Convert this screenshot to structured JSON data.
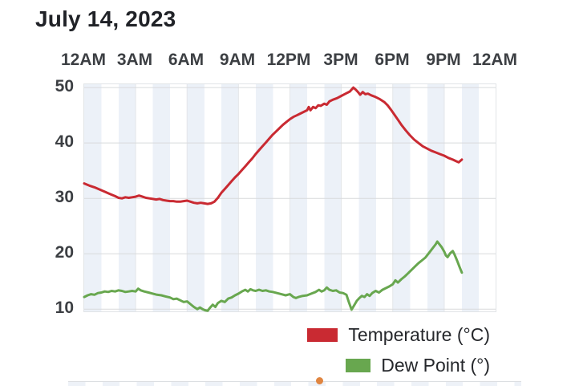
{
  "title": "July 14, 2023",
  "x_axis": {
    "labels": [
      "12AM",
      "3AM",
      "6AM",
      "9AM",
      "12PM",
      "3PM",
      "6PM",
      "9PM",
      "12AM"
    ]
  },
  "y_axis": {
    "labels": [
      "50",
      "40",
      "30",
      "20",
      "10"
    ]
  },
  "legend": [
    {
      "label": "Temperature (°C)",
      "color": "#c92a32"
    },
    {
      "label": "Dew Point (°)",
      "color": "#68a74f"
    }
  ],
  "colors": {
    "temperature_line": "#c92a32",
    "dew_point_line": "#68a74f",
    "hour_stripe": "#ecf1f8",
    "h_gridline": "#d8dadc",
    "v_gridline": "#e4e6e9",
    "next_chart_dot": "#e08540"
  },
  "next_chart_partial": {
    "dot_color": "#e08540"
  },
  "chart_data": {
    "type": "line",
    "title": "July 14, 2023",
    "x_unit": "hour_of_day",
    "x_tick_labels": [
      "12AM",
      "3AM",
      "6AM",
      "9AM",
      "12PM",
      "3PM",
      "6PM",
      "9PM",
      "12AM"
    ],
    "y_ticks": [
      10,
      20,
      30,
      40,
      50
    ],
    "x_range": [
      0,
      24
    ],
    "y_range": [
      9.6,
      50.6
    ],
    "x_gridlines": [
      3,
      6,
      9,
      12,
      15,
      18,
      21
    ],
    "y_gridlines": [
      50,
      40,
      30,
      20,
      10
    ],
    "grid": true,
    "background": "alternating 1-hour pale blue stripes",
    "legend_position": "bottom-right",
    "series": [
      {
        "name": "Temperature (°C)",
        "color": "#c92a32",
        "points": [
          [
            0,
            32.7
          ],
          [
            0.3,
            32.3
          ],
          [
            0.6,
            32.0
          ],
          [
            0.9,
            31.6
          ],
          [
            1.2,
            31.2
          ],
          [
            1.5,
            30.8
          ],
          [
            1.8,
            30.4
          ],
          [
            2,
            30.1
          ],
          [
            2.2,
            30.0
          ],
          [
            2.4,
            30.2
          ],
          [
            2.6,
            30.1
          ],
          [
            2.8,
            30.2
          ],
          [
            3,
            30.3
          ],
          [
            3.2,
            30.5
          ],
          [
            3.4,
            30.3
          ],
          [
            3.6,
            30.1
          ],
          [
            3.8,
            30.0
          ],
          [
            4,
            29.9
          ],
          [
            4.2,
            29.8
          ],
          [
            4.4,
            29.9
          ],
          [
            4.6,
            29.7
          ],
          [
            4.8,
            29.6
          ],
          [
            5,
            29.5
          ],
          [
            5.2,
            29.5
          ],
          [
            5.4,
            29.4
          ],
          [
            5.6,
            29.4
          ],
          [
            5.8,
            29.5
          ],
          [
            6,
            29.6
          ],
          [
            6.2,
            29.4
          ],
          [
            6.4,
            29.2
          ],
          [
            6.6,
            29.1
          ],
          [
            6.8,
            29.2
          ],
          [
            7,
            29.1
          ],
          [
            7.2,
            29.0
          ],
          [
            7.4,
            29.1
          ],
          [
            7.6,
            29.4
          ],
          [
            7.8,
            30.1
          ],
          [
            8,
            31.0
          ],
          [
            8.2,
            31.7
          ],
          [
            8.4,
            32.4
          ],
          [
            8.6,
            33.1
          ],
          [
            8.8,
            33.8
          ],
          [
            9,
            34.4
          ],
          [
            9.2,
            35.1
          ],
          [
            9.4,
            35.8
          ],
          [
            9.6,
            36.5
          ],
          [
            9.8,
            37.2
          ],
          [
            10,
            38.0
          ],
          [
            10.2,
            38.7
          ],
          [
            10.4,
            39.4
          ],
          [
            10.6,
            40.1
          ],
          [
            10.8,
            40.8
          ],
          [
            11,
            41.5
          ],
          [
            11.2,
            42.1
          ],
          [
            11.4,
            42.7
          ],
          [
            11.6,
            43.3
          ],
          [
            11.8,
            43.8
          ],
          [
            12,
            44.3
          ],
          [
            12.2,
            44.7
          ],
          [
            12.4,
            45.0
          ],
          [
            12.6,
            45.3
          ],
          [
            12.8,
            45.6
          ],
          [
            13,
            45.9
          ],
          [
            13.1,
            46.5
          ],
          [
            13.2,
            45.9
          ],
          [
            13.35,
            46.5
          ],
          [
            13.5,
            46.3
          ],
          [
            13.65,
            46.8
          ],
          [
            13.8,
            46.7
          ],
          [
            14,
            47.1
          ],
          [
            14.15,
            46.9
          ],
          [
            14.3,
            47.5
          ],
          [
            14.5,
            47.8
          ],
          [
            14.75,
            48.1
          ],
          [
            15,
            48.5
          ],
          [
            15.25,
            48.9
          ],
          [
            15.5,
            49.3
          ],
          [
            15.7,
            50.0
          ],
          [
            15.85,
            49.6
          ],
          [
            16,
            49.1
          ],
          [
            16.1,
            48.7
          ],
          [
            16.25,
            49.2
          ],
          [
            16.4,
            48.8
          ],
          [
            16.55,
            48.9
          ],
          [
            16.75,
            48.6
          ],
          [
            17,
            48.3
          ],
          [
            17.25,
            47.9
          ],
          [
            17.5,
            47.4
          ],
          [
            17.7,
            46.8
          ],
          [
            17.9,
            46.0
          ],
          [
            18.1,
            45.1
          ],
          [
            18.3,
            44.2
          ],
          [
            18.5,
            43.3
          ],
          [
            18.75,
            42.3
          ],
          [
            19,
            41.4
          ],
          [
            19.25,
            40.6
          ],
          [
            19.5,
            40.0
          ],
          [
            19.75,
            39.4
          ],
          [
            20,
            39.0
          ],
          [
            20.25,
            38.6
          ],
          [
            20.5,
            38.3
          ],
          [
            20.75,
            38.0
          ],
          [
            21,
            37.7
          ],
          [
            21.25,
            37.3
          ],
          [
            21.5,
            37.0
          ],
          [
            21.7,
            36.7
          ],
          [
            21.85,
            36.5
          ],
          [
            22.03,
            37.0
          ]
        ]
      },
      {
        "name": "Dew Point (°)",
        "color": "#68a74f",
        "points": [
          [
            0,
            12.2
          ],
          [
            0.2,
            12.5
          ],
          [
            0.4,
            12.7
          ],
          [
            0.6,
            12.6
          ],
          [
            0.8,
            12.9
          ],
          [
            1,
            13.0
          ],
          [
            1.2,
            13.2
          ],
          [
            1.4,
            13.1
          ],
          [
            1.6,
            13.3
          ],
          [
            1.8,
            13.2
          ],
          [
            2,
            13.4
          ],
          [
            2.2,
            13.3
          ],
          [
            2.4,
            13.1
          ],
          [
            2.6,
            13.2
          ],
          [
            2.8,
            13.3
          ],
          [
            3,
            13.2
          ],
          [
            3.15,
            13.7
          ],
          [
            3.3,
            13.4
          ],
          [
            3.5,
            13.2
          ],
          [
            3.75,
            13.0
          ],
          [
            4,
            12.8
          ],
          [
            4.25,
            12.6
          ],
          [
            4.5,
            12.5
          ],
          [
            4.75,
            12.3
          ],
          [
            5,
            12.1
          ],
          [
            5.2,
            11.8
          ],
          [
            5.4,
            11.9
          ],
          [
            5.6,
            11.6
          ],
          [
            5.8,
            11.3
          ],
          [
            6,
            11.4
          ],
          [
            6.2,
            10.9
          ],
          [
            6.4,
            10.4
          ],
          [
            6.6,
            10.0
          ],
          [
            6.75,
            10.3
          ],
          [
            6.9,
            10.0
          ],
          [
            7.05,
            9.8
          ],
          [
            7.2,
            9.7
          ],
          [
            7.35,
            10.3
          ],
          [
            7.5,
            10.8
          ],
          [
            7.65,
            10.4
          ],
          [
            7.8,
            11.1
          ],
          [
            8,
            11.5
          ],
          [
            8.2,
            11.3
          ],
          [
            8.4,
            11.9
          ],
          [
            8.6,
            12.1
          ],
          [
            8.8,
            12.5
          ],
          [
            9,
            12.8
          ],
          [
            9.2,
            13.2
          ],
          [
            9.4,
            13.5
          ],
          [
            9.55,
            13.2
          ],
          [
            9.7,
            13.6
          ],
          [
            9.85,
            13.4
          ],
          [
            10,
            13.3
          ],
          [
            10.2,
            13.5
          ],
          [
            10.4,
            13.3
          ],
          [
            10.6,
            13.4
          ],
          [
            10.8,
            13.2
          ],
          [
            11,
            13.1
          ],
          [
            11.25,
            12.9
          ],
          [
            11.5,
            12.7
          ],
          [
            11.75,
            12.5
          ],
          [
            12,
            12.7
          ],
          [
            12.2,
            12.2
          ],
          [
            12.35,
            12.0
          ],
          [
            12.5,
            12.2
          ],
          [
            12.75,
            12.4
          ],
          [
            13,
            12.5
          ],
          [
            13.25,
            12.8
          ],
          [
            13.5,
            13.1
          ],
          [
            13.7,
            13.5
          ],
          [
            13.85,
            13.2
          ],
          [
            14,
            13.4
          ],
          [
            14.15,
            13.9
          ],
          [
            14.3,
            13.5
          ],
          [
            14.5,
            13.3
          ],
          [
            14.7,
            13.4
          ],
          [
            14.9,
            13.0
          ],
          [
            15.1,
            12.9
          ],
          [
            15.3,
            12.6
          ],
          [
            15.45,
            11.2
          ],
          [
            15.6,
            9.9
          ],
          [
            15.75,
            10.7
          ],
          [
            15.9,
            11.5
          ],
          [
            16.05,
            12.0
          ],
          [
            16.2,
            12.4
          ],
          [
            16.35,
            12.2
          ],
          [
            16.5,
            12.7
          ],
          [
            16.65,
            12.4
          ],
          [
            16.8,
            12.9
          ],
          [
            17,
            13.3
          ],
          [
            17.2,
            13.0
          ],
          [
            17.4,
            13.5
          ],
          [
            17.6,
            13.8
          ],
          [
            17.8,
            14.1
          ],
          [
            18,
            14.5
          ],
          [
            18.15,
            15.2
          ],
          [
            18.3,
            14.8
          ],
          [
            18.5,
            15.4
          ],
          [
            18.7,
            15.9
          ],
          [
            18.9,
            16.5
          ],
          [
            19.1,
            17.1
          ],
          [
            19.3,
            17.7
          ],
          [
            19.5,
            18.3
          ],
          [
            19.7,
            18.8
          ],
          [
            19.9,
            19.3
          ],
          [
            20.05,
            19.9
          ],
          [
            20.2,
            20.5
          ],
          [
            20.35,
            21.1
          ],
          [
            20.5,
            21.7
          ],
          [
            20.6,
            22.2
          ],
          [
            20.7,
            21.8
          ],
          [
            20.85,
            21.2
          ],
          [
            21,
            20.4
          ],
          [
            21.1,
            19.7
          ],
          [
            21.2,
            19.4
          ],
          [
            21.35,
            20.1
          ],
          [
            21.5,
            20.5
          ],
          [
            21.6,
            19.9
          ],
          [
            21.75,
            18.8
          ],
          [
            21.9,
            17.6
          ],
          [
            22.03,
            16.6
          ]
        ]
      }
    ]
  }
}
